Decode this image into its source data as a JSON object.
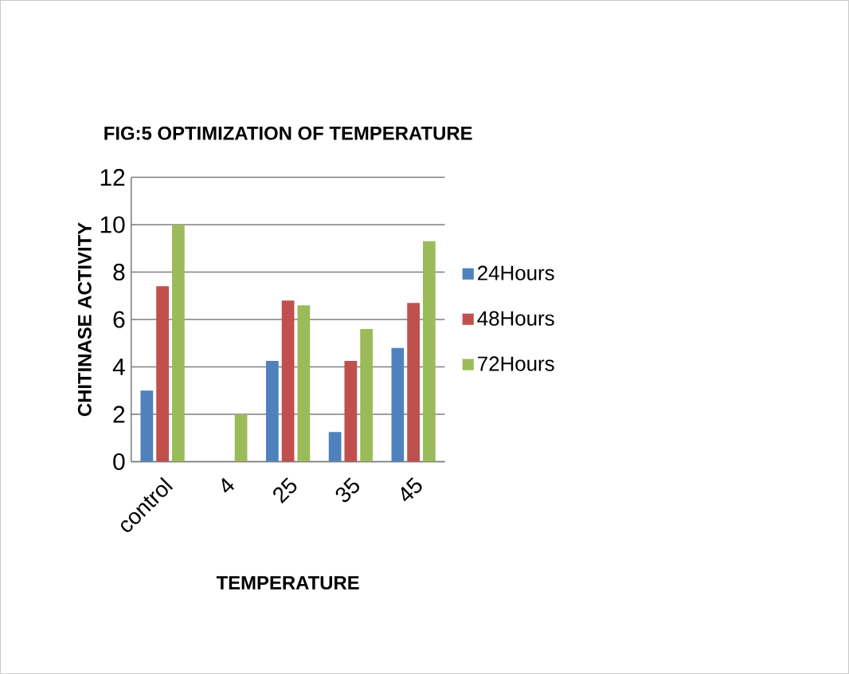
{
  "chart_data": {
    "type": "bar",
    "title": "FIG:5 OPTIMIZATION OF TEMPERATURE",
    "xlabel": "TEMPERATURE",
    "ylabel": "CHITINASE ACTIVITY",
    "categories": [
      "control",
      "4",
      "25",
      "35",
      "45"
    ],
    "series": [
      {
        "name": "24Hours",
        "color": "#4f81bd",
        "values": [
          3,
          0,
          4.25,
          1.25,
          4.8
        ]
      },
      {
        "name": "48Hours",
        "color": "#c0504d",
        "values": [
          7.4,
          0,
          6.8,
          4.25,
          6.7
        ]
      },
      {
        "name": "72Hours",
        "color": "#9bbb59",
        "values": [
          10,
          2,
          6.6,
          5.6,
          9.3
        ]
      }
    ],
    "ylim": [
      0,
      12
    ],
    "yticks": [
      0,
      2,
      4,
      6,
      8,
      10,
      12
    ],
    "grid": "y",
    "legend": "right"
  }
}
